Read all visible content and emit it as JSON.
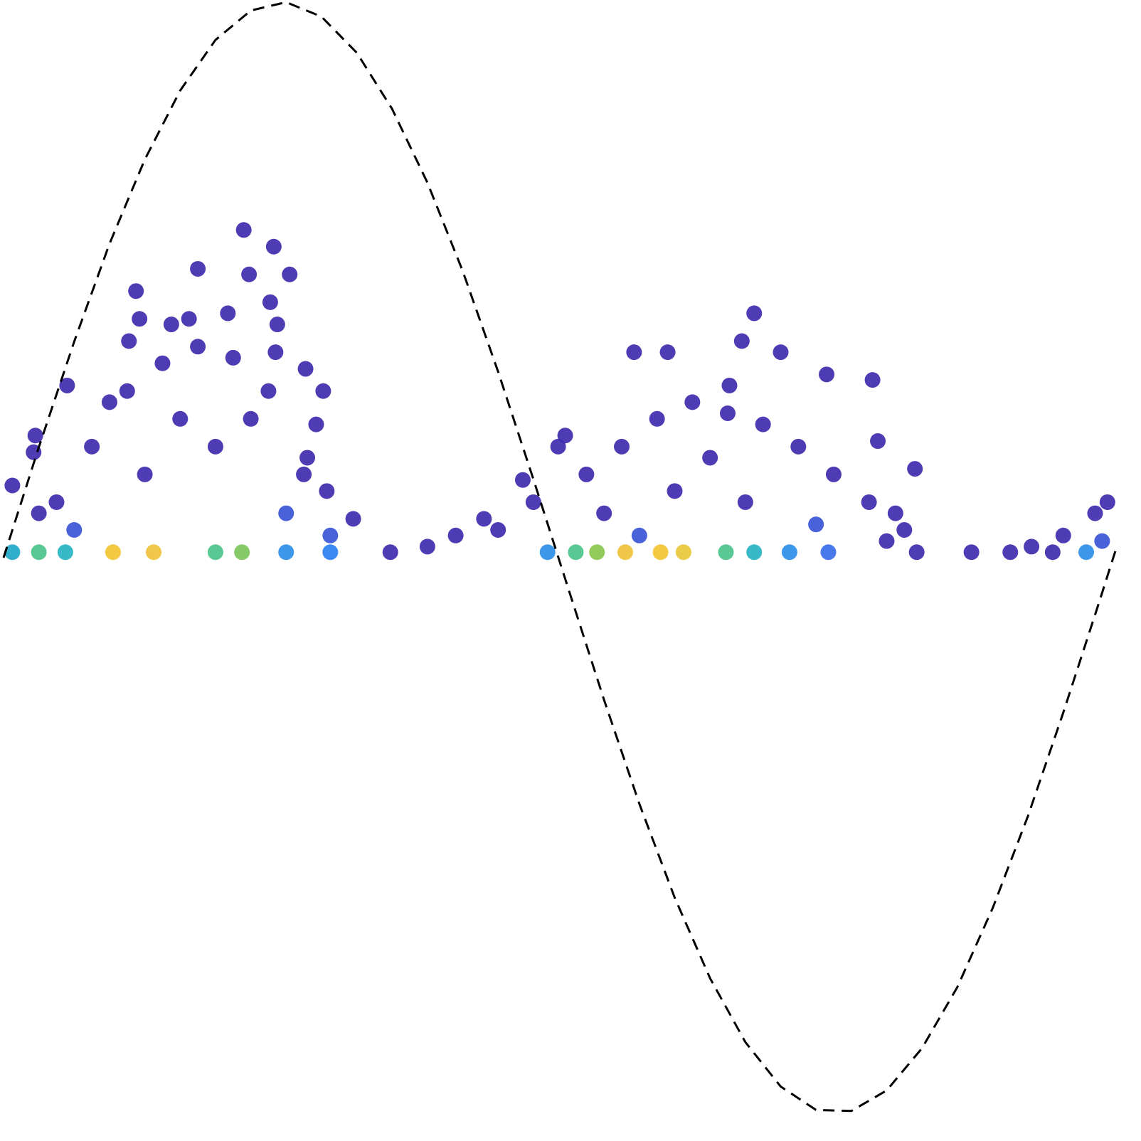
{
  "chart_data": [
    {
      "type": "scatter",
      "xlim": [
        -0.02,
        6.44
      ],
      "ylim": [
        -1.05,
        1.004
      ],
      "x": [
        1.36,
        1.53,
        1.1,
        1.39,
        1.62,
        0.75,
        1.51,
        0.77,
        1.05,
        1.27,
        1.55,
        0.95,
        0.71,
        1.54,
        0.36,
        1.81,
        1.71,
        0.18,
        0.17,
        1.77,
        1.72,
        1.83,
        1.98,
        0.05,
        0.3,
        0.5,
        0.7,
        0.9,
        1.1,
        1.3,
        1.5,
        1.7,
        0.4,
        0.8,
        1.2,
        1.6,
        1.0,
        0.6,
        1.4,
        1.85,
        0.2,
        4.25,
        4.18,
        4.4,
        3.57,
        3.76,
        4.66,
        4.92,
        3.18,
        3.14,
        2.94,
        5.16,
        5.1,
        5.17,
        2.19,
        2.56,
        2.72,
        4.11,
        4.95,
        5.05,
        2.4,
        2.8,
        3.0,
        3.3,
        3.5,
        3.7,
        3.9,
        4.1,
        4.3,
        4.5,
        4.7,
        4.9,
        3.4,
        3.8,
        4.2,
        4.6,
        4.0,
        3.6,
        5.0,
        5.48,
        5.7,
        6.0,
        6.18,
        6.25,
        5.94,
        5.82,
        6.22,
        0.05,
        0.2,
        0.35,
        0.62,
        0.85,
        1.2,
        1.35,
        1.6,
        1.85,
        3.08,
        3.24,
        3.36,
        3.52,
        3.72,
        3.85,
        4.09,
        4.25,
        4.45,
        4.67,
        6.13
      ],
      "values": [
        0.59,
        0.56,
        0.52,
        0.51,
        0.51,
        0.48,
        0.46,
        0.43,
        0.43,
        0.44,
        0.42,
        0.42,
        0.39,
        0.37,
        0.31,
        0.3,
        0.34,
        0.22,
        0.19,
        0.24,
        0.18,
        0.12,
        0.07,
        0.13,
        0.1,
        0.2,
        0.3,
        0.35,
        0.38,
        0.36,
        0.3,
        0.15,
        0.05,
        0.15,
        0.2,
        0.08,
        0.25,
        0.28,
        0.25,
        0.04,
        0.08,
        0.44,
        0.39,
        0.37,
        0.37,
        0.37,
        0.33,
        0.32,
        0.22,
        0.2,
        0.14,
        0.16,
        0.05,
        0.01,
        0.01,
        0.04,
        0.07,
        0.31,
        0.21,
        0.08,
        0.02,
        0.05,
        0.1,
        0.15,
        0.2,
        0.25,
        0.28,
        0.26,
        0.24,
        0.2,
        0.15,
        0.1,
        0.08,
        0.12,
        0.1,
        0.06,
        0.18,
        0.04,
        0.03,
        0.01,
        0.01,
        0.04,
        0.08,
        0.1,
        0.01,
        0.02,
        0.03,
        0.01,
        0.01,
        0.01,
        0.01,
        0.01,
        0.01,
        0.01,
        0.01,
        0.01,
        0.01,
        0.01,
        0.01,
        0.01,
        0.01,
        0.01,
        0.01,
        0.01,
        0.01,
        0.01,
        0.01
      ],
      "colors": [
        "#3f2bae",
        "#3f2bae",
        "#3f2bae",
        "#3f2bae",
        "#3f2bae",
        "#3f2bae",
        "#3f2bae",
        "#3f2bae",
        "#3f2bae",
        "#3f2bae",
        "#3f2bae",
        "#3f2bae",
        "#3f2bae",
        "#3f2bae",
        "#3f2bae",
        "#3f2bae",
        "#3f2bae",
        "#3f2bae",
        "#3f2bae",
        "#3f2bae",
        "#3f2bae",
        "#3f2bae",
        "#3f2bae",
        "#3f2bae",
        "#3f2bae",
        "#3f2bae",
        "#3f2bae",
        "#3f2bae",
        "#3f2bae",
        "#3f2bae",
        "#3f2bae",
        "#3f2bae",
        "#3a55d6",
        "#3f2bae",
        "#3f2bae",
        "#3a55d6",
        "#3f2bae",
        "#3f2bae",
        "#3f2bae",
        "#3a55d6",
        "#3f2bae",
        "#3f2bae",
        "#3f2bae",
        "#3f2bae",
        "#3f2bae",
        "#3f2bae",
        "#3f2bae",
        "#3f2bae",
        "#3f2bae",
        "#3f2bae",
        "#3f2bae",
        "#3f2bae",
        "#3f2bae",
        "#3f2bae",
        "#3f2bae",
        "#3f2bae",
        "#3f2bae",
        "#3f2bae",
        "#3f2bae",
        "#3f2bae",
        "#3f2bae",
        "#3f2bae",
        "#3f2bae",
        "#3f2bae",
        "#3f2bae",
        "#3f2bae",
        "#3f2bae",
        "#3f2bae",
        "#3f2bae",
        "#3f2bae",
        "#3f2bae",
        "#3f2bae",
        "#3f2bae",
        "#3f2bae",
        "#3f2bae",
        "#3a55d6",
        "#3f2bae",
        "#3a55d6",
        "#3f2bae",
        "#3f2bae",
        "#3f2bae",
        "#3f2bae",
        "#3f2bae",
        "#3f2bae",
        "#3f2bae",
        "#3f2bae",
        "#3a55d6",
        "#21a8c8",
        "#4cc38a",
        "#26b3c2",
        "#f3c432",
        "#f0c23a",
        "#4cc38a",
        "#7cc65a",
        "#2d8ee8",
        "#2b7ff0",
        "#2d8ee8",
        "#4cc38a",
        "#8ac54e",
        "#f0c23a",
        "#f3c432",
        "#e8c83a",
        "#4cc38a",
        "#26b3c2",
        "#2d8ee8",
        "#3a6ee8",
        "#2d8ee8"
      ]
    },
    {
      "type": "line",
      "line_style": "dashed",
      "color": "#000000",
      "xlim": [
        -0.02,
        6.44
      ],
      "ylim": [
        -1.05,
        1.004
      ],
      "x": [
        0,
        0.2,
        0.4,
        0.6,
        0.8,
        1.0,
        1.2,
        1.4,
        1.6,
        1.8,
        2.0,
        2.2,
        2.4,
        2.6,
        2.8,
        3.0,
        3.2,
        3.4,
        3.6,
        3.8,
        4.0,
        4.2,
        4.4,
        4.6,
        4.8,
        5.0,
        5.2,
        5.4,
        5.6,
        5.8,
        6.0,
        6.2,
        6.3
      ],
      "values": [
        0,
        0.199,
        0.389,
        0.565,
        0.717,
        0.841,
        0.932,
        0.985,
        1.0,
        0.974,
        0.909,
        0.808,
        0.675,
        0.516,
        0.335,
        0.141,
        -0.058,
        -0.256,
        -0.443,
        -0.612,
        -0.757,
        -0.872,
        -0.952,
        -0.994,
        -0.996,
        -0.959,
        -0.883,
        -0.773,
        -0.631,
        -0.465,
        -0.279,
        -0.083,
        0.017
      ]
    }
  ]
}
